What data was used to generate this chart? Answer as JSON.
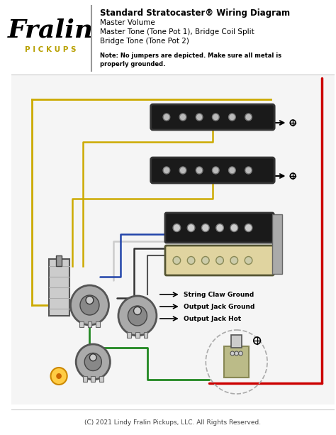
{
  "title": "Standard Stratocaster® Wiring Diagram",
  "subtitle_lines": [
    "Master Volume",
    "Master Tone (Tone Pot 1), Bridge Coil Split",
    "Bridge Tone (Tone Pot 2)"
  ],
  "note": "Note: No jumpers are depicted. Make sure all metal is\nproperly grounded.",
  "footer": "(C) 2021 Lindy Fralin Pickups, LLC. All Rights Reserved.",
  "brand_name": "Fralin",
  "brand_sub": "P I C K U P S",
  "labels": [
    "String Claw Ground",
    "Output Jack Ground",
    "Output Jack Hot"
  ],
  "bg_color": "#ffffff",
  "divider_color": "#999999",
  "title_color": "#000000",
  "wire_red": "#cc0000",
  "wire_black": "#111111",
  "wire_yellow": "#ccaa00",
  "wire_green": "#228822",
  "wire_white": "#dddddd",
  "wire_blue": "#2244aa",
  "pickup_black": "#222222",
  "pickup_cream": "#e8ddb0",
  "pot_color": "#888888"
}
